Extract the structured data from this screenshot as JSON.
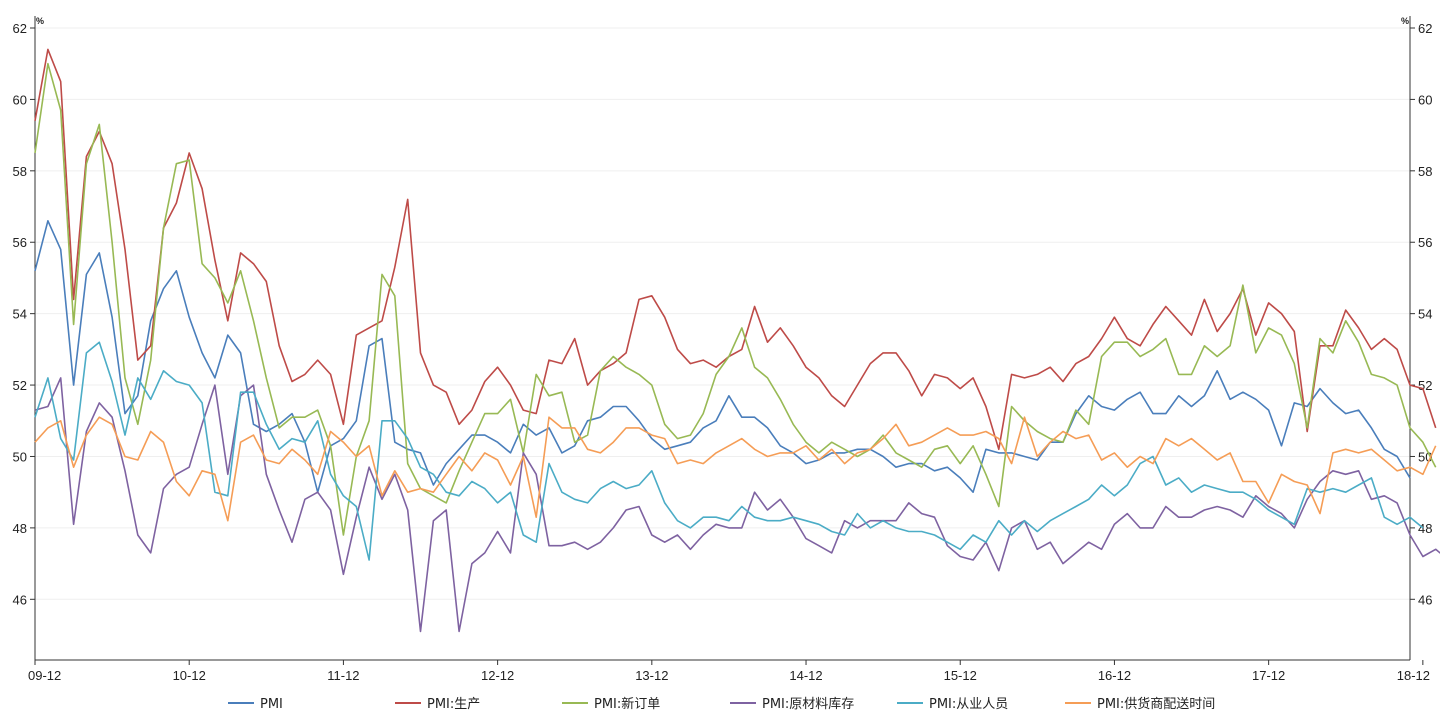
{
  "chart_data": {
    "type": "line",
    "title": "",
    "unit_left": "%",
    "unit_right": "%",
    "ylim": [
      44.3,
      62
    ],
    "y_ticks": [
      46,
      48,
      50,
      52,
      54,
      56,
      58,
      60,
      62
    ],
    "start_month": "2009-12",
    "x_tick_labels": [
      "09-12",
      "10-12",
      "11-12",
      "12-12",
      "13-12",
      "14-12",
      "15-12",
      "16-12",
      "17-12",
      "18-12"
    ],
    "x_tick_indices": [
      0,
      12,
      24,
      36,
      48,
      60,
      72,
      84,
      96,
      108
    ],
    "grid": true,
    "legend_position": "bottom",
    "series": [
      {
        "name": "PMI",
        "color": "#4a7ebb",
        "values": [
          55.2,
          56.6,
          55.8,
          52.0,
          55.1,
          55.7,
          53.9,
          51.2,
          51.7,
          53.8,
          54.7,
          55.2,
          53.9,
          52.9,
          52.2,
          53.4,
          52.9,
          50.9,
          50.7,
          50.9,
          51.2,
          50.4,
          49.0,
          50.3,
          50.5,
          51.0,
          53.1,
          53.3,
          50.4,
          50.2,
          50.1,
          49.2,
          49.8,
          50.2,
          50.6,
          50.6,
          50.4,
          50.1,
          50.9,
          50.6,
          50.8,
          50.1,
          50.3,
          51.0,
          51.1,
          51.4,
          51.4,
          51.0,
          50.5,
          50.2,
          50.3,
          50.4,
          50.8,
          51.0,
          51.7,
          51.1,
          51.1,
          50.8,
          50.3,
          50.1,
          49.8,
          49.9,
          50.1,
          50.1,
          50.2,
          50.2,
          50.0,
          49.7,
          49.8,
          49.8,
          49.6,
          49.7,
          49.4,
          49.0,
          50.2,
          50.1,
          50.1,
          50.0,
          49.9,
          50.4,
          50.4,
          51.2,
          51.7,
          51.4,
          51.3,
          51.6,
          51.8,
          51.2,
          51.2,
          51.7,
          51.4,
          51.7,
          52.4,
          51.6,
          51.8,
          51.6,
          51.3,
          50.3,
          51.5,
          51.4,
          51.9,
          51.5,
          51.2,
          51.3,
          50.8,
          50.2,
          50.0,
          49.4
        ]
      },
      {
        "name": "PMI:生产",
        "color": "#be4b48",
        "values": [
          59.4,
          61.4,
          60.5,
          54.4,
          58.4,
          59.1,
          58.2,
          55.8,
          52.7,
          53.1,
          56.4,
          57.1,
          58.5,
          57.5,
          55.5,
          53.8,
          55.7,
          55.4,
          54.9,
          53.1,
          52.1,
          52.3,
          52.7,
          52.3,
          50.9,
          53.4,
          53.6,
          53.8,
          55.3,
          57.2,
          52.9,
          52.0,
          51.8,
          50.9,
          51.3,
          52.1,
          52.5,
          52.0,
          51.3,
          51.2,
          52.7,
          52.6,
          53.3,
          52.0,
          52.4,
          52.6,
          52.9,
          54.4,
          54.5,
          53.9,
          53.0,
          52.6,
          52.7,
          52.5,
          52.8,
          53.0,
          54.2,
          53.2,
          53.6,
          53.1,
          52.5,
          52.2,
          51.7,
          51.4,
          52.0,
          52.6,
          52.9,
          52.9,
          52.4,
          51.7,
          52.3,
          52.2,
          51.9,
          52.2,
          51.4,
          50.2,
          52.3,
          52.2,
          52.3,
          52.5,
          52.1,
          52.6,
          52.8,
          53.3,
          53.9,
          53.3,
          53.1,
          53.7,
          54.2,
          53.8,
          53.4,
          54.4,
          53.5,
          54.0,
          54.7,
          53.4,
          54.3,
          54.0,
          53.5,
          50.7,
          53.1,
          53.1,
          54.1,
          53.6,
          53.0,
          53.3,
          53.0,
          52.0,
          51.9,
          50.8
        ]
      },
      {
        "name": "PMI:新订单",
        "color": "#98b954",
        "values": [
          58.5,
          61.0,
          59.7,
          53.7,
          58.2,
          59.3,
          56.0,
          52.2,
          50.9,
          52.7,
          56.4,
          58.2,
          58.3,
          55.4,
          55.0,
          54.3,
          55.2,
          53.8,
          52.2,
          50.8,
          51.1,
          51.1,
          51.3,
          50.3,
          47.8,
          50.0,
          51.0,
          55.1,
          54.5,
          49.8,
          49.1,
          48.9,
          48.7,
          49.6,
          50.4,
          51.2,
          51.2,
          51.6,
          50.1,
          52.3,
          51.7,
          51.8,
          50.4,
          50.6,
          52.4,
          52.8,
          52.5,
          52.3,
          52.0,
          50.9,
          50.5,
          50.6,
          51.2,
          52.3,
          52.8,
          53.6,
          52.5,
          52.2,
          51.6,
          50.9,
          50.4,
          50.1,
          50.4,
          50.2,
          50.0,
          50.2,
          50.6,
          50.1,
          49.9,
          49.7,
          50.2,
          50.3,
          49.8,
          50.3,
          49.5,
          48.6,
          51.4,
          51.0,
          50.7,
          50.5,
          50.4,
          51.3,
          50.9,
          52.8,
          53.2,
          53.2,
          52.8,
          53.0,
          53.3,
          52.3,
          52.3,
          53.1,
          52.8,
          53.1,
          54.8,
          52.9,
          53.6,
          53.4,
          52.6,
          50.8,
          53.3,
          52.9,
          53.8,
          53.2,
          52.3,
          52.2,
          52.0,
          50.8,
          50.4,
          49.7
        ]
      },
      {
        "name": "PMI:原材料库存",
        "color": "#7e62a1",
        "values": [
          51.3,
          51.4,
          52.2,
          48.1,
          50.7,
          51.5,
          51.1,
          49.6,
          47.8,
          47.3,
          49.1,
          49.5,
          49.7,
          50.9,
          52.0,
          49.5,
          51.7,
          52.0,
          49.5,
          48.5,
          47.6,
          48.8,
          49.0,
          48.5,
          46.7,
          48.3,
          49.7,
          48.8,
          49.5,
          48.5,
          45.1,
          48.2,
          48.5,
          45.1,
          47.0,
          47.3,
          47.9,
          47.3,
          50.1,
          49.5,
          47.5,
          47.5,
          47.6,
          47.4,
          47.6,
          48.0,
          48.5,
          48.6,
          47.8,
          47.6,
          47.8,
          47.4,
          47.8,
          48.1,
          48.0,
          48.0,
          49.0,
          48.5,
          48.8,
          48.3,
          47.7,
          47.5,
          47.3,
          48.2,
          48.0,
          48.2,
          48.2,
          48.2,
          48.7,
          48.4,
          48.3,
          47.5,
          47.2,
          47.1,
          47.6,
          46.8,
          48.0,
          48.2,
          47.4,
          47.6,
          47.0,
          47.3,
          47.6,
          47.4,
          48.1,
          48.4,
          48.0,
          48.0,
          48.6,
          48.3,
          48.3,
          48.5,
          48.6,
          48.5,
          48.3,
          48.9,
          48.6,
          48.4,
          48.0,
          48.8,
          49.3,
          49.6,
          49.5,
          49.6,
          48.8,
          48.9,
          48.7,
          47.8,
          47.2,
          47.4,
          47.1
        ]
      },
      {
        "name": "PMI:从业人员",
        "color": "#4bacc6",
        "values": [
          51.1,
          52.2,
          50.5,
          49.9,
          52.9,
          53.2,
          52.1,
          50.6,
          52.2,
          51.6,
          52.4,
          52.1,
          52.0,
          51.5,
          49.0,
          48.9,
          51.8,
          51.8,
          50.9,
          50.2,
          50.5,
          50.4,
          51.0,
          49.5,
          48.9,
          48.6,
          47.1,
          51.0,
          51.0,
          50.5,
          49.7,
          49.5,
          49.0,
          48.9,
          49.3,
          49.1,
          48.7,
          49.0,
          47.8,
          47.6,
          49.8,
          49.0,
          48.8,
          48.7,
          49.1,
          49.3,
          49.1,
          49.2,
          49.6,
          48.7,
          48.2,
          48.0,
          48.3,
          48.3,
          48.2,
          48.6,
          48.3,
          48.2,
          48.2,
          48.3,
          48.2,
          48.1,
          47.9,
          47.8,
          48.4,
          48.0,
          48.2,
          48.0,
          47.9,
          47.9,
          47.8,
          47.6,
          47.4,
          47.8,
          47.6,
          48.2,
          47.8,
          48.2,
          47.9,
          48.2,
          48.4,
          48.6,
          48.8,
          49.2,
          48.9,
          49.2,
          49.8,
          50.0,
          49.2,
          49.4,
          49.0,
          49.2,
          49.1,
          49.0,
          49.0,
          48.8,
          48.5,
          48.3,
          48.1,
          49.1,
          49.0,
          49.1,
          49.0,
          49.2,
          49.4,
          48.3,
          48.1,
          48.3,
          48.0
        ]
      },
      {
        "name": "PMI:供货商配送时间",
        "color": "#f59d56",
        "values": [
          50.4,
          50.8,
          51.0,
          49.7,
          50.6,
          51.1,
          50.9,
          50.0,
          49.9,
          50.7,
          50.4,
          49.3,
          48.9,
          49.6,
          49.5,
          48.2,
          50.4,
          50.6,
          49.9,
          49.8,
          50.2,
          49.9,
          49.5,
          50.7,
          50.4,
          50.0,
          50.3,
          48.9,
          49.6,
          49.0,
          49.1,
          49.0,
          49.5,
          50.0,
          49.6,
          50.1,
          49.9,
          49.2,
          50.0,
          48.3,
          51.1,
          50.8,
          50.8,
          50.2,
          50.1,
          50.4,
          50.8,
          50.8,
          50.6,
          50.5,
          49.8,
          49.9,
          49.8,
          50.1,
          50.3,
          50.5,
          50.2,
          50.0,
          50.1,
          50.1,
          50.3,
          49.9,
          50.2,
          49.8,
          50.1,
          50.2,
          50.5,
          50.9,
          50.3,
          50.4,
          50.6,
          50.8,
          50.6,
          50.6,
          50.7,
          50.5,
          49.8,
          51.1,
          50.0,
          50.4,
          50.7,
          50.5,
          50.6,
          49.9,
          50.1,
          49.7,
          50.0,
          49.8,
          50.5,
          50.3,
          50.5,
          50.2,
          49.9,
          50.1,
          49.3,
          49.3,
          48.7,
          49.5,
          49.3,
          49.2,
          48.4,
          50.1,
          50.2,
          50.1,
          50.2,
          49.9,
          49.6,
          49.7,
          49.5,
          50.3
        ]
      }
    ]
  }
}
